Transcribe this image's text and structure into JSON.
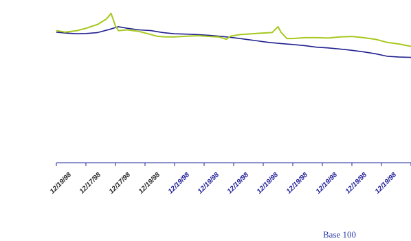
{
  "caption": "Base 100",
  "chart_data": {
    "type": "line",
    "x_ticks": [
      "12/19/98",
      "12/17/98",
      "12/17/98",
      "12/19/98",
      "12/19/98",
      "12/19/98",
      "12/19/98",
      "12/19/98",
      "12/19/98",
      "12/19/98",
      "12/19/98",
      "12/19/98"
    ],
    "x_range": [
      0,
      12
    ],
    "y_range": [
      0,
      100
    ],
    "grid": false,
    "legend": "none",
    "series": [
      {
        "color": "#1f1f8f",
        "values": [
          [
            0.0,
            83.0
          ],
          [
            0.3,
            82.5
          ],
          [
            0.7,
            82.0
          ],
          [
            1.0,
            82.2
          ],
          [
            1.4,
            82.8
          ],
          [
            1.8,
            84.8
          ],
          [
            2.1,
            86.5
          ],
          [
            2.4,
            85.5
          ],
          [
            2.8,
            84.5
          ],
          [
            3.2,
            84.0
          ],
          [
            3.6,
            82.8
          ],
          [
            4.0,
            82.0
          ],
          [
            4.4,
            81.8
          ],
          [
            4.8,
            81.5
          ],
          [
            5.2,
            81.0
          ],
          [
            5.6,
            80.3
          ],
          [
            6.0,
            79.5
          ],
          [
            6.4,
            78.5
          ],
          [
            6.8,
            77.5
          ],
          [
            7.2,
            76.5
          ],
          [
            7.6,
            75.8
          ],
          [
            8.0,
            75.2
          ],
          [
            8.4,
            74.5
          ],
          [
            8.8,
            73.5
          ],
          [
            9.2,
            73.0
          ],
          [
            9.6,
            72.3
          ],
          [
            10.0,
            71.5
          ],
          [
            10.4,
            70.5
          ],
          [
            10.8,
            69.3
          ],
          [
            11.2,
            67.7
          ],
          [
            11.6,
            67.2
          ],
          [
            12.0,
            67.0
          ]
        ]
      },
      {
        "color": "#a6c81e",
        "values": [
          [
            0.0,
            84.0
          ],
          [
            0.3,
            83.0
          ],
          [
            0.7,
            84.0
          ],
          [
            1.0,
            85.5
          ],
          [
            1.4,
            88.0
          ],
          [
            1.7,
            91.5
          ],
          [
            1.85,
            95.0
          ],
          [
            2.0,
            87.0
          ],
          [
            2.1,
            84.0
          ],
          [
            2.4,
            84.5
          ],
          [
            2.8,
            83.5
          ],
          [
            3.1,
            82.0
          ],
          [
            3.4,
            80.5
          ],
          [
            3.7,
            80.0
          ],
          [
            4.0,
            80.0
          ],
          [
            4.4,
            80.5
          ],
          [
            4.8,
            80.8
          ],
          [
            5.2,
            80.3
          ],
          [
            5.5,
            80.0
          ],
          [
            5.75,
            78.5
          ],
          [
            5.9,
            80.5
          ],
          [
            6.2,
            81.5
          ],
          [
            6.6,
            82.0
          ],
          [
            7.0,
            82.5
          ],
          [
            7.3,
            82.8
          ],
          [
            7.5,
            86.5
          ],
          [
            7.6,
            83.0
          ],
          [
            7.8,
            79.0
          ],
          [
            8.0,
            79.0
          ],
          [
            8.4,
            79.5
          ],
          [
            8.8,
            79.5
          ],
          [
            9.2,
            79.3
          ],
          [
            9.6,
            80.0
          ],
          [
            10.0,
            80.3
          ],
          [
            10.4,
            79.5
          ],
          [
            10.8,
            78.5
          ],
          [
            11.2,
            76.5
          ],
          [
            11.6,
            75.5
          ],
          [
            12.0,
            74.0
          ]
        ]
      }
    ]
  }
}
